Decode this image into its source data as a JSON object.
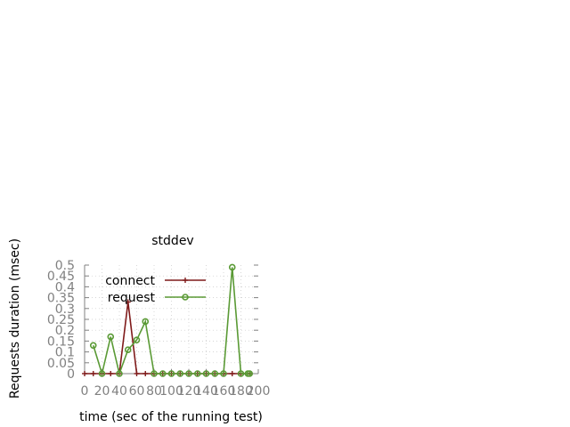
{
  "chart_data": {
    "type": "line",
    "title": "stddev",
    "xlabel": "time (sec of the running test)",
    "ylabel": "Requests duration (msec)",
    "xlim": [
      0,
      200
    ],
    "ylim": [
      0,
      0.5
    ],
    "x_ticks": [
      0,
      20,
      40,
      60,
      80,
      100,
      120,
      140,
      160,
      180,
      200
    ],
    "y_ticks": [
      0,
      0.05,
      0.1,
      0.15,
      0.2,
      0.25,
      0.3,
      0.35,
      0.4,
      0.45,
      0.5
    ],
    "x_tick_labels": [
      "0",
      "20",
      "40",
      "60",
      "80",
      "100",
      "120",
      "140",
      "160",
      "180",
      "200"
    ],
    "y_tick_labels": [
      "0",
      "0.05",
      "0.1",
      "0.15",
      "0.2",
      "0.25",
      "0.3",
      "0.35",
      "0.4",
      "0.45",
      "0.5"
    ],
    "grid": true,
    "legend_position": "top-left",
    "series": [
      {
        "name": "connect",
        "color": "#7f1a1a",
        "marker": "plus",
        "points": [
          [
            0,
            0
          ],
          [
            10,
            0
          ],
          [
            20,
            0
          ],
          [
            30,
            0
          ],
          [
            40,
            0
          ],
          [
            50,
            0.33
          ],
          [
            60,
            0
          ],
          [
            70,
            0
          ],
          [
            80,
            0
          ],
          [
            90,
            0
          ],
          [
            100,
            0
          ],
          [
            110,
            0
          ],
          [
            120,
            0
          ],
          [
            130,
            0
          ],
          [
            140,
            0
          ],
          [
            150,
            0
          ],
          [
            160,
            0
          ],
          [
            170,
            0
          ],
          [
            180,
            0
          ],
          [
            190,
            0
          ]
        ]
      },
      {
        "name": "request",
        "color": "#5a9a35",
        "marker": "circle",
        "points": [
          [
            10,
            0.13
          ],
          [
            20,
            0
          ],
          [
            30,
            0.17
          ],
          [
            40,
            0
          ],
          [
            50,
            0.11
          ],
          [
            60,
            0.155
          ],
          [
            70,
            0.24
          ],
          [
            80,
            0
          ],
          [
            90,
            0
          ],
          [
            100,
            0
          ],
          [
            110,
            0
          ],
          [
            120,
            0
          ],
          [
            130,
            0
          ],
          [
            140,
            0
          ],
          [
            150,
            0
          ],
          [
            160,
            0
          ],
          [
            170,
            0.49
          ],
          [
            180,
            0
          ],
          [
            188,
            0
          ],
          [
            190,
            0
          ]
        ]
      }
    ]
  }
}
